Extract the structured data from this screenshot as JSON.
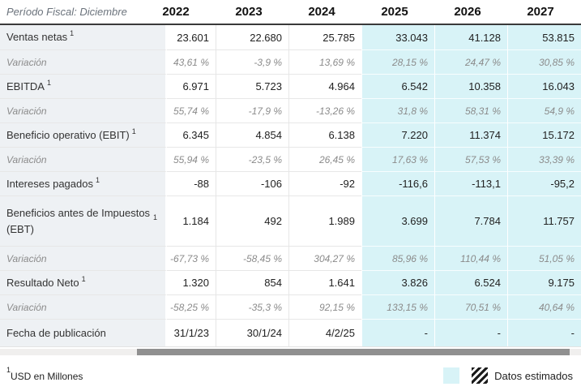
{
  "header": {
    "period_label": "Período Fiscal: Diciembre",
    "years": [
      "2022",
      "2023",
      "2024",
      "2025",
      "2026",
      "2027"
    ]
  },
  "table": {
    "estimated_from_index": 3,
    "rows": [
      {
        "type": "metric",
        "label": "Ventas netas",
        "footnote_marker": "1",
        "values": [
          "23.601",
          "22.680",
          "25.785",
          "33.043",
          "41.128",
          "53.815"
        ]
      },
      {
        "type": "variation",
        "label": "Variación",
        "values": [
          "43,61 %",
          "-3,9 %",
          "13,69 %",
          "28,15 %",
          "24,47 %",
          "30,85 %"
        ]
      },
      {
        "type": "metric",
        "label": "EBITDA",
        "footnote_marker": "1",
        "values": [
          "6.971",
          "5.723",
          "4.964",
          "6.542",
          "10.358",
          "16.043"
        ]
      },
      {
        "type": "variation",
        "label": "Variación",
        "values": [
          "55,74 %",
          "-17,9 %",
          "-13,26 %",
          "31,8 %",
          "58,31 %",
          "54,9 %"
        ]
      },
      {
        "type": "metric",
        "label": "Beneficio operativo (EBIT)",
        "footnote_marker": "1",
        "values": [
          "6.345",
          "4.854",
          "6.138",
          "7.220",
          "11.374",
          "15.172"
        ]
      },
      {
        "type": "variation",
        "label": "Variación",
        "values": [
          "55,94 %",
          "-23,5 %",
          "26,45 %",
          "17,63 %",
          "57,53 %",
          "33,39 %"
        ]
      },
      {
        "type": "metric",
        "label": "Intereses pagados",
        "footnote_marker": "1",
        "values": [
          "-88",
          "-106",
          "-92",
          "-116,6",
          "-113,1",
          "-95,2"
        ]
      },
      {
        "type": "metric",
        "label": "Beneficios antes de Impuestos (EBT)",
        "footnote_marker": "1",
        "values": [
          "1.184",
          "492",
          "1.989",
          "3.699",
          "7.784",
          "11.757"
        ]
      },
      {
        "type": "variation",
        "label": "Variación",
        "values": [
          "-67,73 %",
          "-58,45 %",
          "304,27 %",
          "85,96 %",
          "110,44 %",
          "51,05 %"
        ]
      },
      {
        "type": "metric",
        "label": "Resultado Neto",
        "footnote_marker": "1",
        "values": [
          "1.320",
          "854",
          "1.641",
          "3.826",
          "6.524",
          "9.175"
        ]
      },
      {
        "type": "variation",
        "label": "Variación",
        "values": [
          "-58,25 %",
          "-35,3 %",
          "92,15 %",
          "133,15 %",
          "70,51 %",
          "40,64 %"
        ]
      },
      {
        "type": "date",
        "label": "Fecha de publicación",
        "values": [
          "31/1/23",
          "30/1/24",
          "4/2/25",
          "-",
          "-",
          "-"
        ]
      }
    ]
  },
  "footer": {
    "footnote_marker": "1",
    "footnote_text": "USD en Millones",
    "legend_label": "Datos estimados"
  },
  "colors": {
    "estimated_bg": "#d8f3f7",
    "label_column_bg": "#eef1f4",
    "header_rule": "#3a3a3a",
    "scrollbar_thumb": "#909090",
    "variation_text": "#8b8b8b"
  }
}
